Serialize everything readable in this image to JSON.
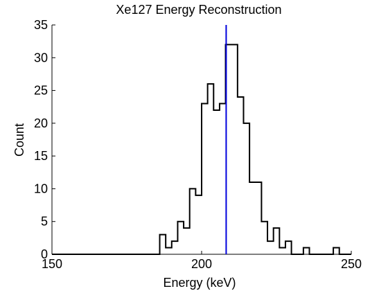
{
  "chart_data": {
    "type": "histogram",
    "title": "Xe127 Energy Reconstruction",
    "xlabel": "Energy (keV)",
    "ylabel": "Count",
    "xlim": [
      150,
      250
    ],
    "ylim": [
      0,
      35
    ],
    "xticks": [
      150,
      200,
      250
    ],
    "yticks": [
      0,
      5,
      10,
      15,
      20,
      25,
      30,
      35
    ],
    "bin_width": 2,
    "bins": [
      {
        "x0": 150,
        "count": 0
      },
      {
        "x0": 186,
        "count": 3
      },
      {
        "x0": 188,
        "count": 1
      },
      {
        "x0": 190,
        "count": 2
      },
      {
        "x0": 192,
        "count": 5
      },
      {
        "x0": 194,
        "count": 4
      },
      {
        "x0": 196,
        "count": 10
      },
      {
        "x0": 198,
        "count": 9
      },
      {
        "x0": 200,
        "count": 23
      },
      {
        "x0": 202,
        "count": 26
      },
      {
        "x0": 204,
        "count": 22
      },
      {
        "x0": 206,
        "count": 23
      },
      {
        "x0": 208,
        "count": 32
      },
      {
        "x0": 210,
        "count": 32
      },
      {
        "x0": 212,
        "count": 24
      },
      {
        "x0": 214,
        "count": 20
      },
      {
        "x0": 216,
        "count": 11
      },
      {
        "x0": 218,
        "count": 11
      },
      {
        "x0": 220,
        "count": 5
      },
      {
        "x0": 222,
        "count": 2
      },
      {
        "x0": 224,
        "count": 4
      },
      {
        "x0": 226,
        "count": 1
      },
      {
        "x0": 228,
        "count": 2
      },
      {
        "x0": 230,
        "count": 0
      },
      {
        "x0": 232,
        "count": 0
      },
      {
        "x0": 234,
        "count": 1
      },
      {
        "x0": 236,
        "count": 0
      },
      {
        "x0": 238,
        "count": 0
      },
      {
        "x0": 240,
        "count": 0
      },
      {
        "x0": 242,
        "count": 0
      },
      {
        "x0": 244,
        "count": 1
      },
      {
        "x0": 246,
        "count": 0
      },
      {
        "x0": 248,
        "count": 0
      }
    ],
    "reference_line": {
      "x": 208.2,
      "color": "#0000dd"
    },
    "histogram_color": "#000000",
    "grid": false,
    "legend": "none"
  }
}
